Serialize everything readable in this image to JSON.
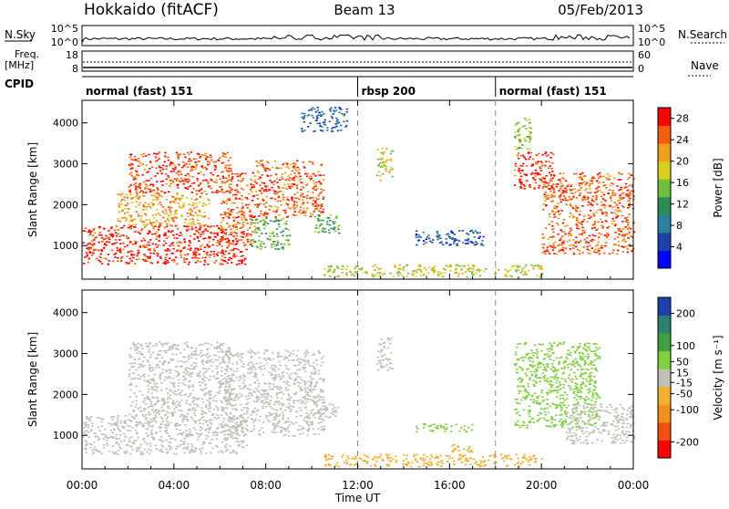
{
  "header": {
    "site": "Hokkaido (fitACF)",
    "beam": "Beam 13",
    "date": "05/Feb/2013"
  },
  "aux": {
    "nsky_label": "N.Sky",
    "nsearch_label": "N.Search",
    "nsky_ticks": [
      "10^5",
      "10^0"
    ],
    "nsearch_ticks": [
      "10^5",
      "10^0"
    ],
    "freq_label": "Freq.",
    "freq_unit": "[MHz]",
    "freq_ticks": [
      "18",
      "8"
    ],
    "nave_label": "Nave",
    "nave_ticks": [
      "60",
      "0"
    ],
    "cpid_label": "CPID",
    "cpid_segments": [
      {
        "label": "normal (fast) 151",
        "start": 0,
        "end": 12
      },
      {
        "label": "rbsp 200",
        "start": 12,
        "end": 18
      },
      {
        "label": "normal (fast) 151",
        "start": 18,
        "end": 24
      }
    ]
  },
  "chart_data": [
    {
      "type": "heatmap",
      "name": "power-panel",
      "xlabel": "Time UT",
      "ylabel": "Slant Range [km]",
      "xlim": [
        0,
        24
      ],
      "ylim": [
        180,
        4550
      ],
      "x_ticks": [
        "00:00",
        "04:00",
        "08:00",
        "12:00",
        "16:00",
        "20:00",
        "00:00"
      ],
      "x_tick_values": [
        0,
        4,
        8,
        12,
        16,
        20,
        24
      ],
      "y_ticks": [
        1000,
        2000,
        3000,
        4000
      ],
      "colorbar": {
        "label": "Power [dB]",
        "ticks": [
          28,
          24,
          20,
          16,
          12,
          8,
          4
        ],
        "range": [
          0,
          30
        ],
        "colors": [
          "#0000ff",
          "#1e40a8",
          "#2d7fa0",
          "#2e8b57",
          "#6fc040",
          "#d8d020",
          "#f0a020",
          "#f06010",
          "#ff0000"
        ]
      },
      "regions": [
        {
          "t0": 0.0,
          "t1": 7.2,
          "r0": 550,
          "r1": 1500,
          "level": 27
        },
        {
          "t0": 1.5,
          "t1": 5.5,
          "r0": 1500,
          "r1": 2300,
          "level": 22
        },
        {
          "t0": 2.0,
          "t1": 6.5,
          "r0": 2300,
          "r1": 3300,
          "level": 26
        },
        {
          "t0": 6.0,
          "t1": 7.5,
          "r0": 1000,
          "r1": 2800,
          "level": 25
        },
        {
          "t0": 7.5,
          "t1": 10.5,
          "r0": 1700,
          "r1": 3100,
          "level": 25
        },
        {
          "t0": 7.3,
          "t1": 9.0,
          "r0": 900,
          "r1": 1700,
          "level": 14
        },
        {
          "t0": 10.0,
          "t1": 11.2,
          "r0": 1300,
          "r1": 1800,
          "level": 14
        },
        {
          "t0": 9.5,
          "t1": 11.5,
          "r0": 3800,
          "r1": 4400,
          "level": 7
        },
        {
          "t0": 12.8,
          "t1": 13.5,
          "r0": 2600,
          "r1": 3400,
          "level": 18
        },
        {
          "t0": 14.5,
          "t1": 17.5,
          "r0": 1000,
          "r1": 1400,
          "level": 6
        },
        {
          "t0": 10.5,
          "t1": 20.0,
          "r0": 250,
          "r1": 550,
          "level": 18
        },
        {
          "t0": 18.8,
          "t1": 20.5,
          "r0": 2400,
          "r1": 3300,
          "level": 27
        },
        {
          "t0": 20.0,
          "t1": 24.0,
          "r0": 800,
          "r1": 2800,
          "level": 25
        },
        {
          "t0": 18.8,
          "t1": 19.5,
          "r0": 3300,
          "r1": 4200,
          "level": 15
        }
      ]
    },
    {
      "type": "heatmap",
      "name": "velocity-panel",
      "xlabel": "Time UT",
      "ylabel": "Slant Range [km]",
      "xlim": [
        0,
        24
      ],
      "ylim": [
        180,
        4550
      ],
      "x_ticks": [
        "00:00",
        "04:00",
        "08:00",
        "12:00",
        "16:00",
        "20:00",
        "00:00"
      ],
      "x_tick_values": [
        0,
        4,
        8,
        12,
        16,
        20,
        24
      ],
      "y_ticks": [
        1000,
        2000,
        3000,
        4000
      ],
      "colorbar": {
        "label": "Velocity [m s⁻¹]",
        "ticks": [
          200,
          100,
          50,
          15,
          -15,
          -50,
          -100,
          -200
        ],
        "range": [
          -250,
          250
        ],
        "colors": [
          "#ff0000",
          "#f05010",
          "#f09020",
          "#f0b030",
          "#c0c0b8",
          "#80d040",
          "#40a040",
          "#2e7f70",
          "#1e40a8"
        ]
      },
      "regions": [
        {
          "t0": 0.0,
          "t1": 7.2,
          "r0": 550,
          "r1": 1500,
          "level": 0
        },
        {
          "t0": 2.0,
          "t1": 6.5,
          "r0": 1500,
          "r1": 3300,
          "level": 0
        },
        {
          "t0": 6.0,
          "t1": 10.5,
          "r0": 1000,
          "r1": 3100,
          "level": 0
        },
        {
          "t0": 10.0,
          "t1": 11.2,
          "r0": 1400,
          "r1": 1800,
          "level": 0
        },
        {
          "t0": 12.8,
          "t1": 13.5,
          "r0": 2600,
          "r1": 3400,
          "level": 0
        },
        {
          "t0": 14.5,
          "t1": 17.0,
          "r0": 1100,
          "r1": 1300,
          "level": 60
        },
        {
          "t0": 16.0,
          "t1": 17.0,
          "r0": 600,
          "r1": 800,
          "level": -60
        },
        {
          "t0": 10.5,
          "t1": 20.0,
          "r0": 250,
          "r1": 550,
          "level": -40
        },
        {
          "t0": 18.8,
          "t1": 22.5,
          "r0": 1200,
          "r1": 3300,
          "level": 40
        },
        {
          "t0": 21.0,
          "t1": 24.0,
          "r0": 800,
          "r1": 1800,
          "level": 0
        }
      ]
    }
  ]
}
